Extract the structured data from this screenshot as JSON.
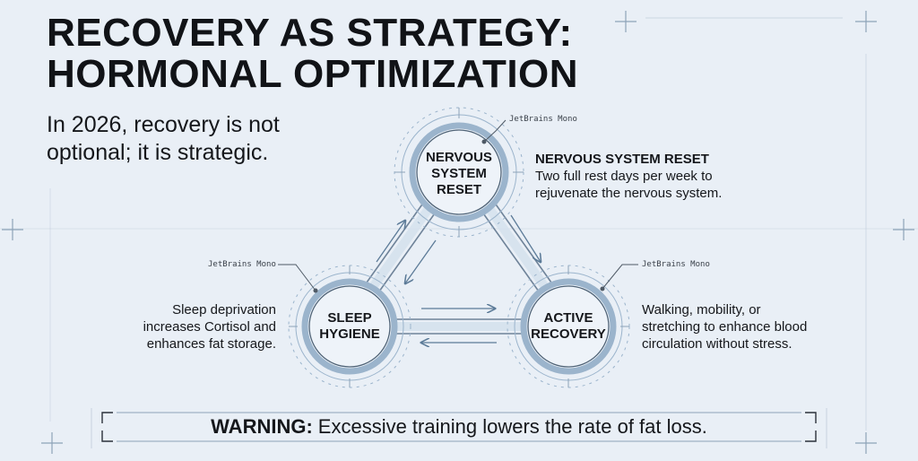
{
  "title": {
    "line1": "RECOVERY AS STRATEGY:",
    "line2": "HORMONAL OPTIMIZATION"
  },
  "subtitle": "In 2026, recovery is not optional; it is strategic.",
  "nodes": {
    "top": {
      "line1": "NERVOUS",
      "line2": "SYSTEM",
      "line3": "RESET"
    },
    "left": {
      "line1": "SLEEP",
      "line2": "HYGIENE"
    },
    "right": {
      "line1": "ACTIVE",
      "line2": "RECOVERY"
    }
  },
  "descriptions": {
    "nervous": {
      "title": "NERVOUS SYSTEM RESET",
      "line1": "Two full rest days per week to",
      "line2": "rejuvenate the nervous system."
    },
    "sleep": {
      "line1": "Sleep deprivation",
      "line2": "increases Cortisol and",
      "line3": "enhances fat storage."
    },
    "active": {
      "line1": "Walking, mobility, or",
      "line2": "stretching to enhance blood",
      "line3": "circulation without stress."
    }
  },
  "annotations": {
    "top": "JetBrains Mono",
    "left": "JetBrains Mono",
    "right": "JetBrains Mono"
  },
  "warning": {
    "label": "WARNING:",
    "text": "Excessive training lowers the rate of fat loss."
  },
  "colors": {
    "background": "#e9eff6",
    "node_fill": "#eef3f9",
    "ring": "#9bb4cc",
    "line": "#6f8399",
    "arrow": "#5c7b98",
    "text": "#15171b"
  }
}
